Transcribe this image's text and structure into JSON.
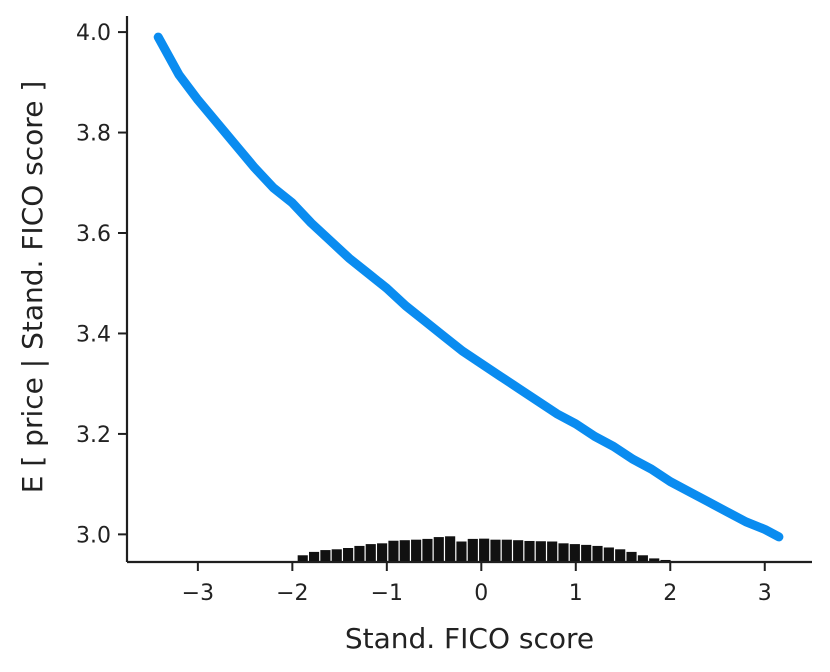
{
  "chart_data": {
    "type": "line",
    "title": "",
    "xlabel": "Stand. FICO score",
    "ylabel": "E [ price | Stand. FICO score ]",
    "xlim": [
      -3.75,
      3.5
    ],
    "ylim": [
      2.945,
      4.04
    ],
    "xticks": [
      -3,
      -2,
      -1,
      0,
      1,
      2,
      3
    ],
    "xtick_labels": [
      "−3",
      "−2",
      "−1",
      "0",
      "1",
      "2",
      "3"
    ],
    "yticks": [
      3.0,
      3.2,
      3.4,
      3.6,
      3.8,
      4.0
    ],
    "ytick_labels": [
      "3.0",
      "3.2",
      "3.4",
      "3.6",
      "3.8",
      "4.0"
    ],
    "grid": false,
    "colors": {
      "line": "#0a8cf0",
      "histogram": "#111111"
    },
    "series": [
      {
        "x": [
          -3.42,
          -3.2,
          -3.0,
          -2.8,
          -2.6,
          -2.4,
          -2.2,
          -2.0,
          -1.8,
          -1.6,
          -1.4,
          -1.2,
          -1.0,
          -0.8,
          -0.6,
          -0.4,
          -0.2,
          0.0,
          0.2,
          0.4,
          0.6,
          0.8,
          1.0,
          1.2,
          1.4,
          1.6,
          1.8,
          2.0,
          2.2,
          2.4,
          2.6,
          2.8,
          3.0,
          3.15
        ],
        "y": [
          3.99,
          3.915,
          3.865,
          3.82,
          3.775,
          3.73,
          3.69,
          3.66,
          3.62,
          3.585,
          3.55,
          3.52,
          3.49,
          3.455,
          3.425,
          3.395,
          3.365,
          3.34,
          3.315,
          3.29,
          3.265,
          3.24,
          3.22,
          3.195,
          3.175,
          3.15,
          3.13,
          3.105,
          3.085,
          3.065,
          3.045,
          3.025,
          3.01,
          2.995
        ]
      }
    ],
    "histogram": {
      "bin_edges": [
        -1.95,
        -1.83,
        -1.71,
        -1.59,
        -1.47,
        -1.35,
        -1.23,
        -1.11,
        -0.99,
        -0.87,
        -0.75,
        -0.63,
        -0.51,
        -0.39,
        -0.27,
        -0.15,
        -0.03,
        0.09,
        0.21,
        0.33,
        0.45,
        0.57,
        0.69,
        0.81,
        0.93,
        1.05,
        1.17,
        1.29,
        1.41,
        1.53,
        1.65,
        1.77,
        1.89,
        2.01
      ],
      "relative_heights": [
        0.22,
        0.35,
        0.42,
        0.45,
        0.5,
        0.58,
        0.65,
        0.68,
        0.78,
        0.8,
        0.82,
        0.85,
        0.92,
        0.95,
        0.75,
        0.85,
        0.86,
        0.82,
        0.82,
        0.8,
        0.77,
        0.76,
        0.75,
        0.68,
        0.65,
        0.62,
        0.58,
        0.52,
        0.45,
        0.35,
        0.22,
        0.1,
        0.04
      ]
    }
  }
}
